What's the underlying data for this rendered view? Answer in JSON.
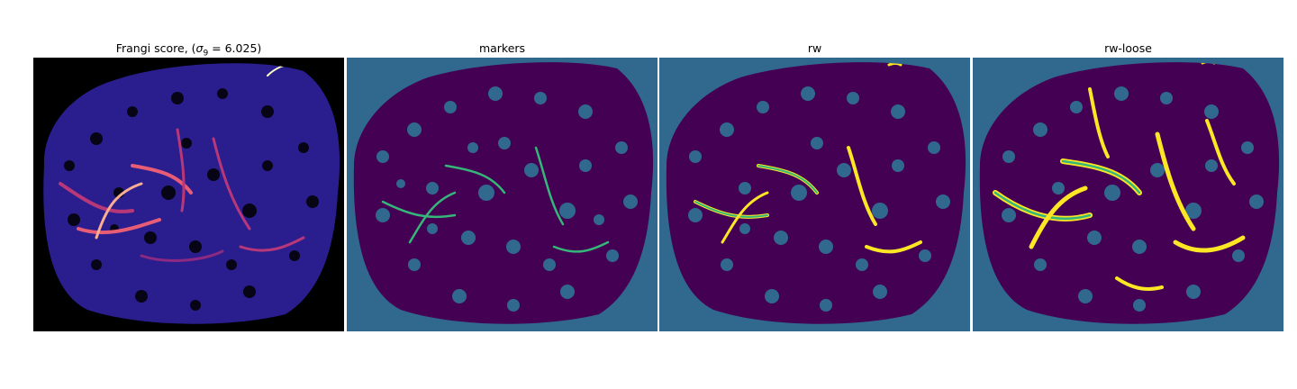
{
  "panels": [
    {
      "title_prefix": "Frangi score, (",
      "title_symbol": "σ",
      "title_sub": "9",
      "title_suffix": " = 6.025)",
      "colormap": "magma"
    },
    {
      "title": "markers",
      "colormap": "viridis"
    },
    {
      "title": "rw",
      "colormap": "viridis"
    },
    {
      "title": "rw-loose",
      "colormap": "viridis"
    }
  ],
  "colors": {
    "background_dark": "#000000",
    "viridis_background": "#31688e",
    "viridis_low": "#440154",
    "viridis_mid": "#35b779",
    "viridis_high": "#fde725",
    "magma_base": "#2a1e8f",
    "magma_mid": "#b73779",
    "magma_high": "#fcfdbf"
  }
}
